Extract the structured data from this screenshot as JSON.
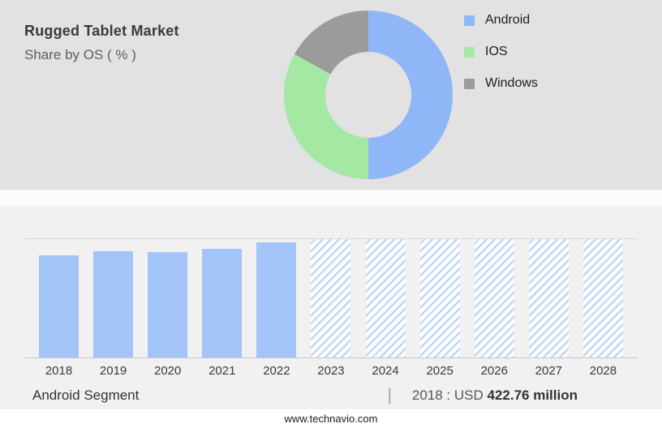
{
  "header": {
    "title": "Rugged Tablet Market",
    "subtitle": "Share by OS ( % )"
  },
  "chart_data": [
    {
      "type": "pie",
      "title": "Share by OS ( % )",
      "donut": true,
      "legend_position": "right",
      "segments": [
        {
          "label": "Android",
          "value": 50,
          "color": "#8fb6f7"
        },
        {
          "label": "IOS",
          "value": 33,
          "color": "#a4e8a3"
        },
        {
          "label": "Windows",
          "value": 17,
          "color": "#9b9b9b"
        }
      ]
    },
    {
      "type": "bar",
      "categories": [
        "2018",
        "2019",
        "2020",
        "2021",
        "2022",
        "2023",
        "2024",
        "2025",
        "2026",
        "2027",
        "2028"
      ],
      "values": [
        86,
        90,
        89,
        92,
        97,
        100,
        100,
        100,
        100,
        100,
        100
      ],
      "value_note": "relative bar heights, % of plot height (no y-axis shown)",
      "actual_categories": [
        "2018",
        "2019",
        "2020",
        "2021",
        "2022"
      ],
      "forecast_categories": [
        "2023",
        "2024",
        "2025",
        "2026",
        "2027",
        "2028"
      ],
      "bar_color": "#a3c4f6",
      "hatch_color": "#b9d2f1",
      "annotation": "2018 : USD 422.76 million"
    }
  ],
  "caption": {
    "segment_label": "Android Segment",
    "separator": "|",
    "value_plain": "2018 : USD ",
    "value_bold": "422.76 million"
  },
  "footer": {
    "website": "www.technavio.com"
  }
}
